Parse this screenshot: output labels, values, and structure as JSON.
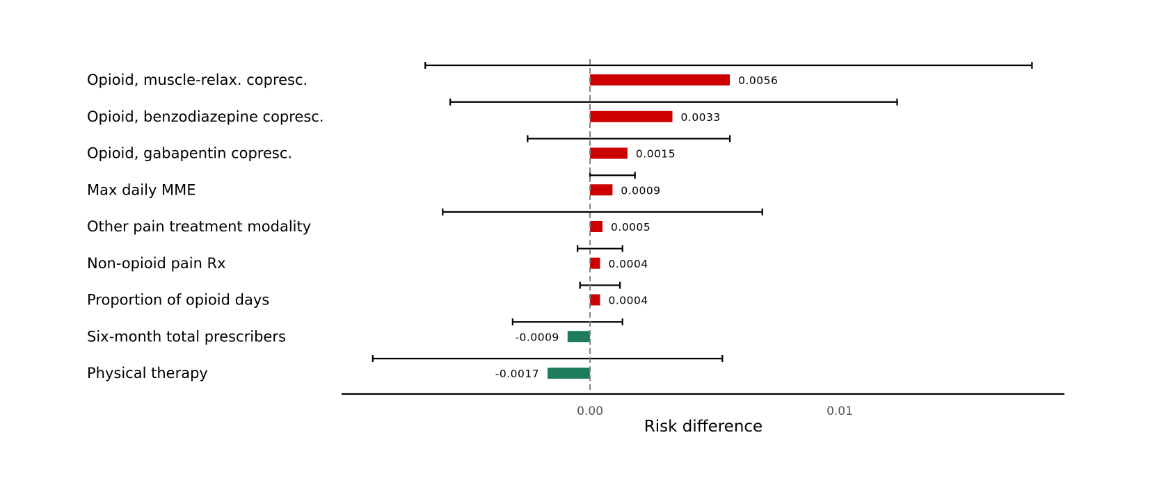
{
  "chart_data": {
    "type": "bar",
    "orientation": "horizontal",
    "categories": [
      "Opioid, muscle-relax. copresc.",
      "Opioid, benzodiazepine copresc.",
      "Opioid, gabapentin copresc.",
      "Max daily MME",
      "Other pain treatment modality",
      "Non-opioid pain Rx",
      "Proportion of opioid days",
      "Six-month total prescribers",
      "Physical therapy"
    ],
    "values": [
      0.0056,
      0.0033,
      0.0015,
      0.0009,
      0.0005,
      0.0004,
      0.0004,
      -0.0009,
      -0.0017
    ],
    "value_labels": [
      "0.0056",
      "0.0033",
      "0.0015",
      "0.0009",
      "0.0005",
      "0.0004",
      "0.0004",
      "-0.0009",
      "-0.0017"
    ],
    "ci_lower": [
      -0.0066,
      -0.0056,
      -0.0025,
      0.0,
      -0.0059,
      -0.0005,
      -0.0004,
      -0.0031,
      -0.0087
    ],
    "ci_upper": [
      0.0177,
      0.0123,
      0.0056,
      0.0018,
      0.0069,
      0.0013,
      0.0012,
      0.0013,
      0.0053
    ],
    "xlabel": "Risk difference",
    "ylabel": "",
    "xlim": [
      -0.00995,
      0.019
    ],
    "xticks": [
      0.0,
      0.01
    ],
    "xtick_labels": [
      "0.00",
      "0.01"
    ],
    "reference_line": 0.0,
    "grid": false,
    "legend": "none",
    "colors": {
      "positive": "#cc0000",
      "negative": "#1e7b5c",
      "reference_line": "#808080",
      "axis": "#000000",
      "error_bar": "#000000"
    }
  }
}
